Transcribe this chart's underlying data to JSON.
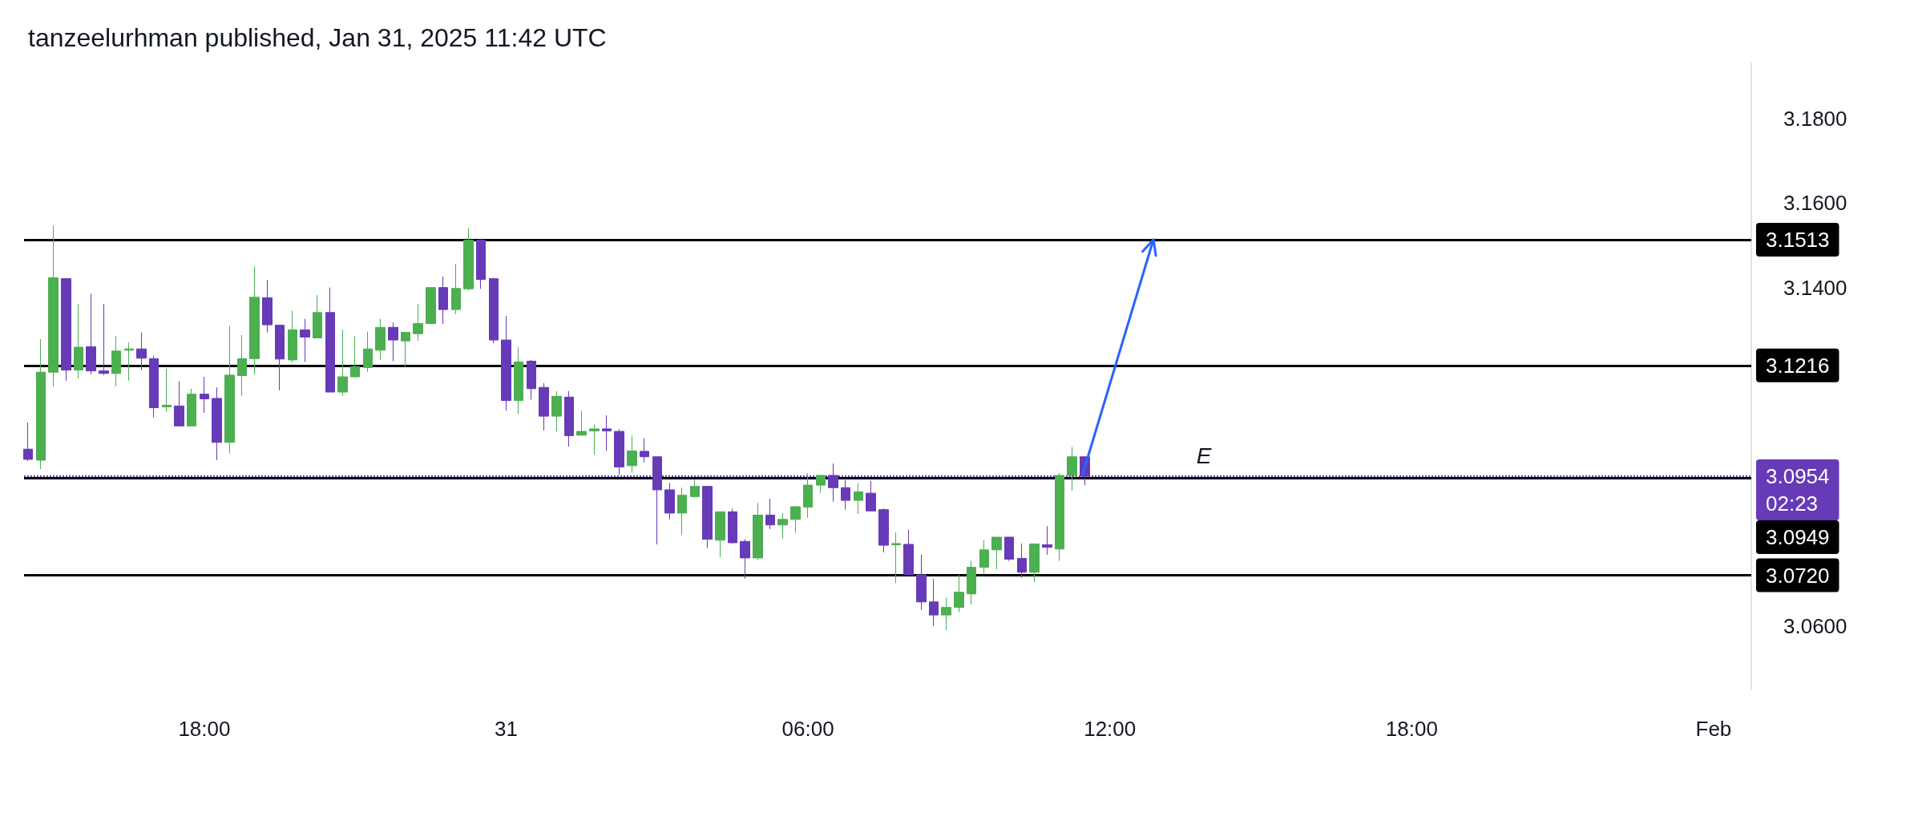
{
  "chart_data": {
    "type": "candlestick",
    "title": "tanzeelurhman published, Jan 31, 2025 11:42 UTC",
    "xlim": [
      "2025-01-30T14:25",
      "2025-02-01T00:45"
    ],
    "xticks": [
      {
        "value": "2025-01-30T18:00",
        "label": "18:00"
      },
      {
        "value": "2025-01-31T00:00",
        "label": "31"
      },
      {
        "value": "2025-01-31T06:00",
        "label": "06:00"
      },
      {
        "value": "2025-01-31T12:00",
        "label": "12:00"
      },
      {
        "value": "2025-01-31T18:00",
        "label": "18:00"
      },
      {
        "value": "2025-02-01T00:00",
        "label": "Feb"
      }
    ],
    "ylim": [
      3.045,
      3.193
    ],
    "yticks": [
      {
        "value": 3.06,
        "label": "3.0600"
      },
      {
        "value": 3.14,
        "label": "3.1400"
      },
      {
        "value": 3.16,
        "label": "3.1600"
      },
      {
        "value": 3.18,
        "label": "3.1800"
      }
    ],
    "series": [
      {
        "x": [
          "2025-01-30T14:30",
          "2025-01-30T14:45",
          "2025-01-30T15:00",
          "2025-01-30T15:15",
          "2025-01-30T15:30",
          "2025-01-30T15:45",
          "2025-01-30T16:00",
          "2025-01-30T16:15",
          "2025-01-30T16:30",
          "2025-01-30T16:45",
          "2025-01-30T17:00",
          "2025-01-30T17:15",
          "2025-01-30T17:30",
          "2025-01-30T17:45",
          "2025-01-30T18:00",
          "2025-01-30T18:15",
          "2025-01-30T18:30",
          "2025-01-30T18:45",
          "2025-01-30T19:00",
          "2025-01-30T19:15",
          "2025-01-30T19:30",
          "2025-01-30T19:45",
          "2025-01-30T20:00",
          "2025-01-30T20:15",
          "2025-01-30T20:30",
          "2025-01-30T20:45",
          "2025-01-30T21:00",
          "2025-01-30T21:15",
          "2025-01-30T21:30",
          "2025-01-30T21:45",
          "2025-01-30T22:00",
          "2025-01-30T22:15",
          "2025-01-30T22:30",
          "2025-01-30T22:45",
          "2025-01-30T23:00",
          "2025-01-30T23:15",
          "2025-01-30T23:30",
          "2025-01-30T23:45",
          "2025-01-31T00:00",
          "2025-01-31T00:15",
          "2025-01-31T00:30",
          "2025-01-31T00:45",
          "2025-01-31T01:00",
          "2025-01-31T01:15",
          "2025-01-31T01:30",
          "2025-01-31T01:45",
          "2025-01-31T02:00",
          "2025-01-31T02:15",
          "2025-01-31T02:30",
          "2025-01-31T02:45",
          "2025-01-31T03:00",
          "2025-01-31T03:15",
          "2025-01-31T03:30",
          "2025-01-31T03:45",
          "2025-01-31T04:00",
          "2025-01-31T04:15",
          "2025-01-31T04:30",
          "2025-01-31T04:45",
          "2025-01-31T05:00",
          "2025-01-31T05:15",
          "2025-01-31T05:30",
          "2025-01-31T05:45",
          "2025-01-31T06:00",
          "2025-01-31T06:15",
          "2025-01-31T06:30",
          "2025-01-31T06:45",
          "2025-01-31T07:00",
          "2025-01-31T07:15",
          "2025-01-31T07:30",
          "2025-01-31T07:45",
          "2025-01-31T08:00",
          "2025-01-31T08:15",
          "2025-01-31T08:30",
          "2025-01-31T08:45",
          "2025-01-31T09:00",
          "2025-01-31T09:15",
          "2025-01-31T09:30",
          "2025-01-31T09:45",
          "2025-01-31T10:00",
          "2025-01-31T10:15",
          "2025-01-31T10:30",
          "2025-01-31T10:45",
          "2025-01-31T11:00",
          "2025-01-31T11:15",
          "2025-01-31T11:30"
        ],
        "ohlc": [
          [
            3.1018,
            3.1081,
            3.099,
            3.0994
          ],
          [
            3.0992,
            3.1278,
            3.0971,
            3.12
          ],
          [
            3.12,
            3.1546,
            3.1166,
            3.1423
          ],
          [
            3.1421,
            3.1421,
            3.118,
            3.1205
          ],
          [
            3.1205,
            3.1361,
            3.1185,
            3.1259
          ],
          [
            3.126,
            3.1385,
            3.1195,
            3.1203
          ],
          [
            3.1203,
            3.1361,
            3.1193,
            3.1197
          ],
          [
            3.1197,
            3.1286,
            3.1166,
            3.125
          ],
          [
            3.1252,
            3.127,
            3.118,
            3.1255
          ],
          [
            3.1255,
            3.1294,
            3.1205,
            3.1233
          ],
          [
            3.1232,
            3.1239,
            3.1093,
            3.1116
          ],
          [
            3.1118,
            3.1208,
            3.1106,
            3.1122
          ],
          [
            3.112,
            3.1179,
            3.1072,
            3.1073
          ],
          [
            3.1073,
            3.1161,
            3.1073,
            3.1148
          ],
          [
            3.1148,
            3.1189,
            3.1104,
            3.1137
          ],
          [
            3.1138,
            3.1164,
            3.0992,
            3.1034
          ],
          [
            3.1034,
            3.1309,
            3.1008,
            3.1193
          ],
          [
            3.1192,
            3.1288,
            3.1144,
            3.1232
          ],
          [
            3.1232,
            3.145,
            3.1195,
            3.1377
          ],
          [
            3.1376,
            3.1418,
            3.1294,
            3.1312
          ],
          [
            3.1311,
            3.1311,
            3.1157,
            3.1231
          ],
          [
            3.1229,
            3.1345,
            3.1222,
            3.13
          ],
          [
            3.13,
            3.1326,
            3.1224,
            3.1283
          ],
          [
            3.1281,
            3.1382,
            3.128,
            3.1341
          ],
          [
            3.1341,
            3.14,
            3.1153,
            3.1153
          ],
          [
            3.1153,
            3.13,
            3.1144,
            3.1189
          ],
          [
            3.1189,
            3.1286,
            3.1189,
            3.1213
          ],
          [
            3.1211,
            3.1296,
            3.1201,
            3.1255
          ],
          [
            3.1252,
            3.1326,
            3.1229,
            3.1306
          ],
          [
            3.1306,
            3.1317,
            3.1226,
            3.1276
          ],
          [
            3.1274,
            3.1294,
            3.1211,
            3.1294
          ],
          [
            3.1291,
            3.1362,
            3.1274,
            3.1315
          ],
          [
            3.1315,
            3.14,
            3.1315,
            3.14
          ],
          [
            3.14,
            3.1426,
            3.1314,
            3.1348
          ],
          [
            3.1348,
            3.1456,
            3.1337,
            3.1398
          ],
          [
            3.1397,
            3.1541,
            3.1393,
            3.1512
          ],
          [
            3.1512,
            3.1514,
            3.1397,
            3.1419
          ],
          [
            3.1421,
            3.1423,
            3.1268,
            3.1276
          ],
          [
            3.1276,
            3.1333,
            3.1109,
            3.1133
          ],
          [
            3.1133,
            3.126,
            3.1101,
            3.1224
          ],
          [
            3.1226,
            3.1229,
            3.1135,
            3.1161
          ],
          [
            3.1164,
            3.1174,
            3.1062,
            3.1096
          ],
          [
            3.1096,
            3.1155,
            3.106,
            3.1143
          ],
          [
            3.1141,
            3.1155,
            3.1024,
            3.105
          ],
          [
            3.1051,
            3.1109,
            3.1051,
            3.106
          ],
          [
            3.1061,
            3.1076,
            3.1005,
            3.1066
          ],
          [
            3.1066,
            3.1098,
            3.1014,
            3.1061
          ],
          [
            3.106,
            3.1065,
            3.0958,
            3.0976
          ],
          [
            3.0979,
            3.105,
            3.0962,
            3.1014
          ],
          [
            3.1013,
            3.1044,
            3.0987,
            3.1
          ],
          [
            3.1,
            3.1,
            3.0793,
            3.0922
          ],
          [
            3.0922,
            3.0938,
            3.0852,
            3.0867
          ],
          [
            3.0867,
            3.0927,
            3.0816,
            3.0909
          ],
          [
            3.0906,
            3.0946,
            3.0903,
            3.093
          ],
          [
            3.093,
            3.093,
            3.0784,
            3.0805
          ],
          [
            3.0803,
            3.087,
            3.0763,
            3.087
          ],
          [
            3.087,
            3.0877,
            3.0795,
            3.0797
          ],
          [
            3.08,
            3.0805,
            3.0712,
            3.0761
          ],
          [
            3.0761,
            3.0891,
            3.0756,
            3.0862
          ],
          [
            3.0862,
            3.0901,
            3.0829,
            3.0839
          ],
          [
            3.0839,
            3.0867,
            3.0807,
            3.0852
          ],
          [
            3.0852,
            3.0884,
            3.082,
            3.0882
          ],
          [
            3.0881,
            3.0961,
            3.0856,
            3.0933
          ],
          [
            3.0933,
            3.0956,
            3.0914,
            3.0956
          ],
          [
            3.0956,
            3.0984,
            3.0894,
            3.0927
          ],
          [
            3.0927,
            3.0945,
            3.0875,
            3.0897
          ],
          [
            3.0897,
            3.0938,
            3.0865,
            3.0917
          ],
          [
            3.0914,
            3.0943,
            3.0872,
            3.0872
          ],
          [
            3.0875,
            3.0878,
            3.0774,
            3.0791
          ],
          [
            3.0792,
            3.0821,
            3.0701,
            3.0795
          ],
          [
            3.0793,
            3.0828,
            3.0721,
            3.0721
          ],
          [
            3.0721,
            3.0769,
            3.0638,
            3.0657
          ],
          [
            3.0657,
            3.0711,
            3.06,
            3.0626
          ],
          [
            3.0626,
            3.0667,
            3.059,
            3.0644
          ],
          [
            3.0644,
            3.0721,
            3.0633,
            3.068
          ],
          [
            3.0676,
            3.0754,
            3.0651,
            3.0739
          ],
          [
            3.0739,
            3.0803,
            3.0721,
            3.078
          ],
          [
            3.078,
            3.081,
            3.0734,
            3.081
          ],
          [
            3.081,
            3.081,
            3.0754,
            3.0758
          ],
          [
            3.076,
            3.0795,
            3.0714,
            3.0727
          ],
          [
            3.0727,
            3.0795,
            3.0704,
            3.0794
          ],
          [
            3.0792,
            3.0836,
            3.0768,
            3.0786
          ],
          [
            3.0782,
            3.0962,
            3.0754,
            3.0956
          ],
          [
            3.0956,
            3.1023,
            3.092,
            3.1
          ],
          [
            3.1,
            3.1,
            3.0933,
            3.0954
          ]
        ],
        "colors": [
          "#673ab7",
          "#4caf50",
          "#4caf50",
          "#673ab7",
          "#4caf50",
          "#673ab7",
          "#673ab7",
          "#4caf50",
          "#4caf50",
          "#673ab7",
          "#673ab7",
          "#4caf50",
          "#673ab7",
          "#4caf50",
          "#673ab7",
          "#673ab7",
          "#4caf50",
          "#4caf50",
          "#4caf50",
          "#673ab7",
          "#673ab7",
          "#4caf50",
          "#673ab7",
          "#4caf50",
          "#673ab7",
          "#4caf50",
          "#4caf50",
          "#4caf50",
          "#4caf50",
          "#673ab7",
          "#4caf50",
          "#4caf50",
          "#4caf50",
          "#673ab7",
          "#4caf50",
          "#4caf50",
          "#673ab7",
          "#673ab7",
          "#673ab7",
          "#4caf50",
          "#673ab7",
          "#673ab7",
          "#4caf50",
          "#673ab7",
          "#4caf50",
          "#4caf50",
          "#673ab7",
          "#673ab7",
          "#4caf50",
          "#673ab7",
          "#673ab7",
          "#673ab7",
          "#4caf50",
          "#4caf50",
          "#673ab7",
          "#4caf50",
          "#673ab7",
          "#673ab7",
          "#4caf50",
          "#673ab7",
          "#4caf50",
          "#4caf50",
          "#4caf50",
          "#4caf50",
          "#673ab7",
          "#673ab7",
          "#4caf50",
          "#673ab7",
          "#673ab7",
          "#4caf50",
          "#673ab7",
          "#673ab7",
          "#673ab7",
          "#4caf50",
          "#4caf50",
          "#4caf50",
          "#4caf50",
          "#4caf50",
          "#673ab7",
          "#673ab7",
          "#4caf50",
          "#673ab7",
          "#4caf50",
          "#4caf50",
          "#673ab7"
        ]
      }
    ],
    "ref_lines": [
      {
        "axis": "y",
        "value": 3.0954,
        "label": "3.0954",
        "color": "#673ab7",
        "line_style": "dotted"
      },
      {
        "axis": "y",
        "value": 3.1513,
        "label": "3.1513",
        "color": "#000000",
        "line_style": "solid"
      },
      {
        "axis": "y",
        "value": 3.1216,
        "label": "3.1216",
        "color": "#000000",
        "line_style": "solid"
      },
      {
        "axis": "y",
        "value": 3.0949,
        "label": "3.0949",
        "color": "#000000",
        "line_style": "solid"
      },
      {
        "axis": "y",
        "value": 3.072,
        "label": "3.0720",
        "color": "#000000",
        "line_style": "solid"
      }
    ],
    "annotations": [
      "E",
      "02:23"
    ]
  }
}
